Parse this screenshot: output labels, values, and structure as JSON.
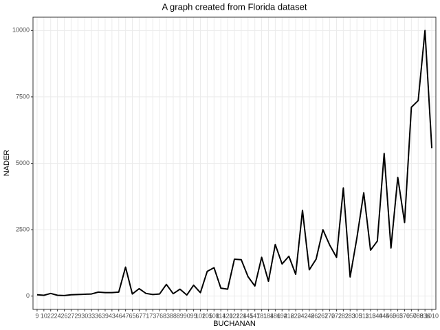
{
  "chart_data": {
    "type": "line",
    "title": "A graph created from Florida dataset",
    "x_label": "BUCHANAN",
    "y_label": "NADER",
    "categories": [
      "9",
      "10",
      "22",
      "24",
      "26",
      "27",
      "29",
      "30",
      "33",
      "36",
      "39",
      "43",
      "46",
      "47",
      "65",
      "67",
      "71",
      "73",
      "76",
      "83",
      "88",
      "89",
      "90",
      "99",
      "102",
      "105",
      "108",
      "114",
      "120",
      "122",
      "124",
      "145",
      "147",
      "181",
      "184",
      "186",
      "194",
      "216",
      "229",
      "242",
      "248",
      "262",
      "267",
      "270",
      "272",
      "282",
      "283",
      "305",
      "311",
      "316",
      "340",
      "445",
      "460",
      "563",
      "570",
      "650",
      "789",
      "836",
      "1010"
    ],
    "series": [
      {
        "color": "#000000",
        "values": [
          50,
          30,
          100,
          30,
          20,
          50,
          60,
          70,
          80,
          150,
          130,
          130,
          150,
          1090,
          80,
          280,
          100,
          60,
          80,
          440,
          90,
          260,
          40,
          410,
          130,
          930,
          1070,
          300,
          260,
          1390,
          1370,
          730,
          380,
          1460,
          560,
          1940,
          1210,
          1500,
          820,
          3230,
          990,
          1390,
          2500,
          1920,
          1460,
          4070,
          720,
          2200,
          3890,
          1730,
          2070,
          5370,
          1810,
          4470,
          2770,
          7110,
          7360,
          10000,
          5570
        ]
      }
    ],
    "ylim": [
      -500,
      10500
    ],
    "yticks": [
      0,
      2500,
      5000,
      7500,
      10000
    ],
    "grid": true
  }
}
